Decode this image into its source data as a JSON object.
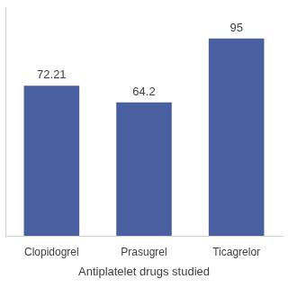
{
  "chart_data": {
    "type": "bar",
    "x_label": "Antiplatelet drugs studied",
    "categories": [
      "Clopidogrel",
      "Prasugrel",
      "Ticagrelor"
    ],
    "values": [
      72.21,
      64.2,
      95
    ],
    "color": "#4a5fa0",
    "ylim": [
      0,
      110
    ],
    "grid": false,
    "data_labels": true,
    "tick_labels": "x"
  }
}
